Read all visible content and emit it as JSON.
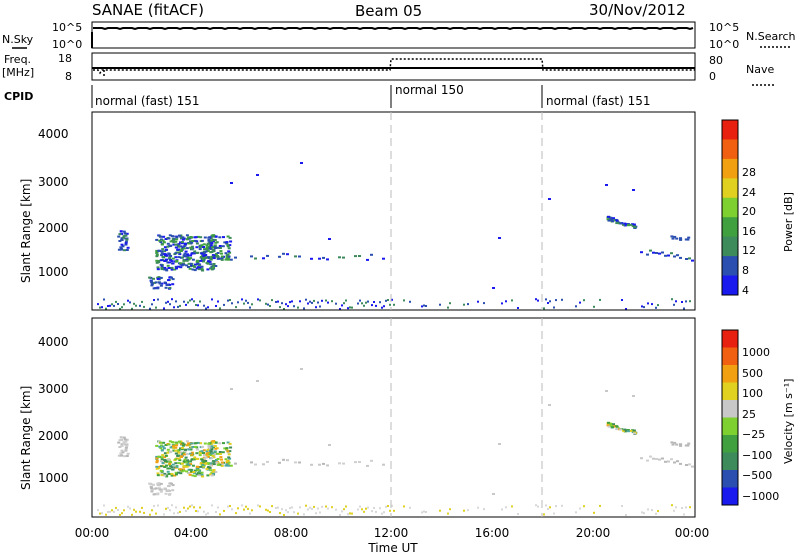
{
  "header": {
    "station": "SANAE (fitACF)",
    "beam": "Beam 05",
    "date": "30/Nov/2012"
  },
  "panels": {
    "nsky_label": "N.Sky",
    "nsearch_label": "N.Search",
    "nsky_ticks": [
      "10^5",
      "10^0"
    ],
    "freq_label_1": "Freq.",
    "freq_label_2": "[MHz]",
    "freq_ticks": [
      "18",
      "8"
    ],
    "nave_label": "Nave",
    "nave_ticks": [
      "80",
      "0"
    ],
    "cpid_label": "CPID",
    "cpid_segments": [
      {
        "label": "normal (fast) 151",
        "start_h": 0,
        "end_h": 12
      },
      {
        "label": "normal 150",
        "start_h": 12,
        "end_h": 18
      },
      {
        "label": "normal (fast) 151",
        "start_h": 18,
        "end_h": 24
      }
    ]
  },
  "colors": {
    "power_scale": [
      "#1a1aee",
      "#2b4fb0",
      "#3d8a5a",
      "#40a040",
      "#7dd030",
      "#e0d020",
      "#f0a010",
      "#f06010",
      "#e82010"
    ],
    "velocity_scale": [
      "#1a1aee",
      "#2b4fb0",
      "#3d8a5a",
      "#40a040",
      "#7dd030",
      "#c8c8c8",
      "#e0d020",
      "#f0a010",
      "#f06010",
      "#e82010"
    ]
  },
  "chart_data": [
    {
      "type": "heatmap",
      "name": "power",
      "ylabel": "Slant Range [km]",
      "ylim": [
        180,
        4600
      ],
      "yticks": [
        "4000",
        "3000",
        "2000",
        "1000"
      ],
      "colorbar_label": "Power [dB]",
      "colorbar_ticks": [
        "28",
        "24",
        "20",
        "16",
        "12",
        "8",
        "4"
      ],
      "xlim_hours": [
        0,
        24
      ]
    },
    {
      "type": "heatmap",
      "name": "velocity",
      "ylabel": "Slant Range [km]",
      "ylim": [
        180,
        4600
      ],
      "yticks": [
        "4000",
        "3000",
        "2000",
        "1000"
      ],
      "colorbar_label": "Velocity [m s⁻¹]",
      "colorbar_ticks": [
        "1000",
        "500",
        "100",
        "25",
        "−25",
        "−100",
        "−500",
        "−1000"
      ],
      "xlim_hours": [
        0,
        24
      ],
      "xlabel": "Time UT",
      "xticks": [
        "00:00",
        "04:00",
        "08:00",
        "12:00",
        "16:00",
        "20:00",
        "00:00"
      ]
    }
  ]
}
